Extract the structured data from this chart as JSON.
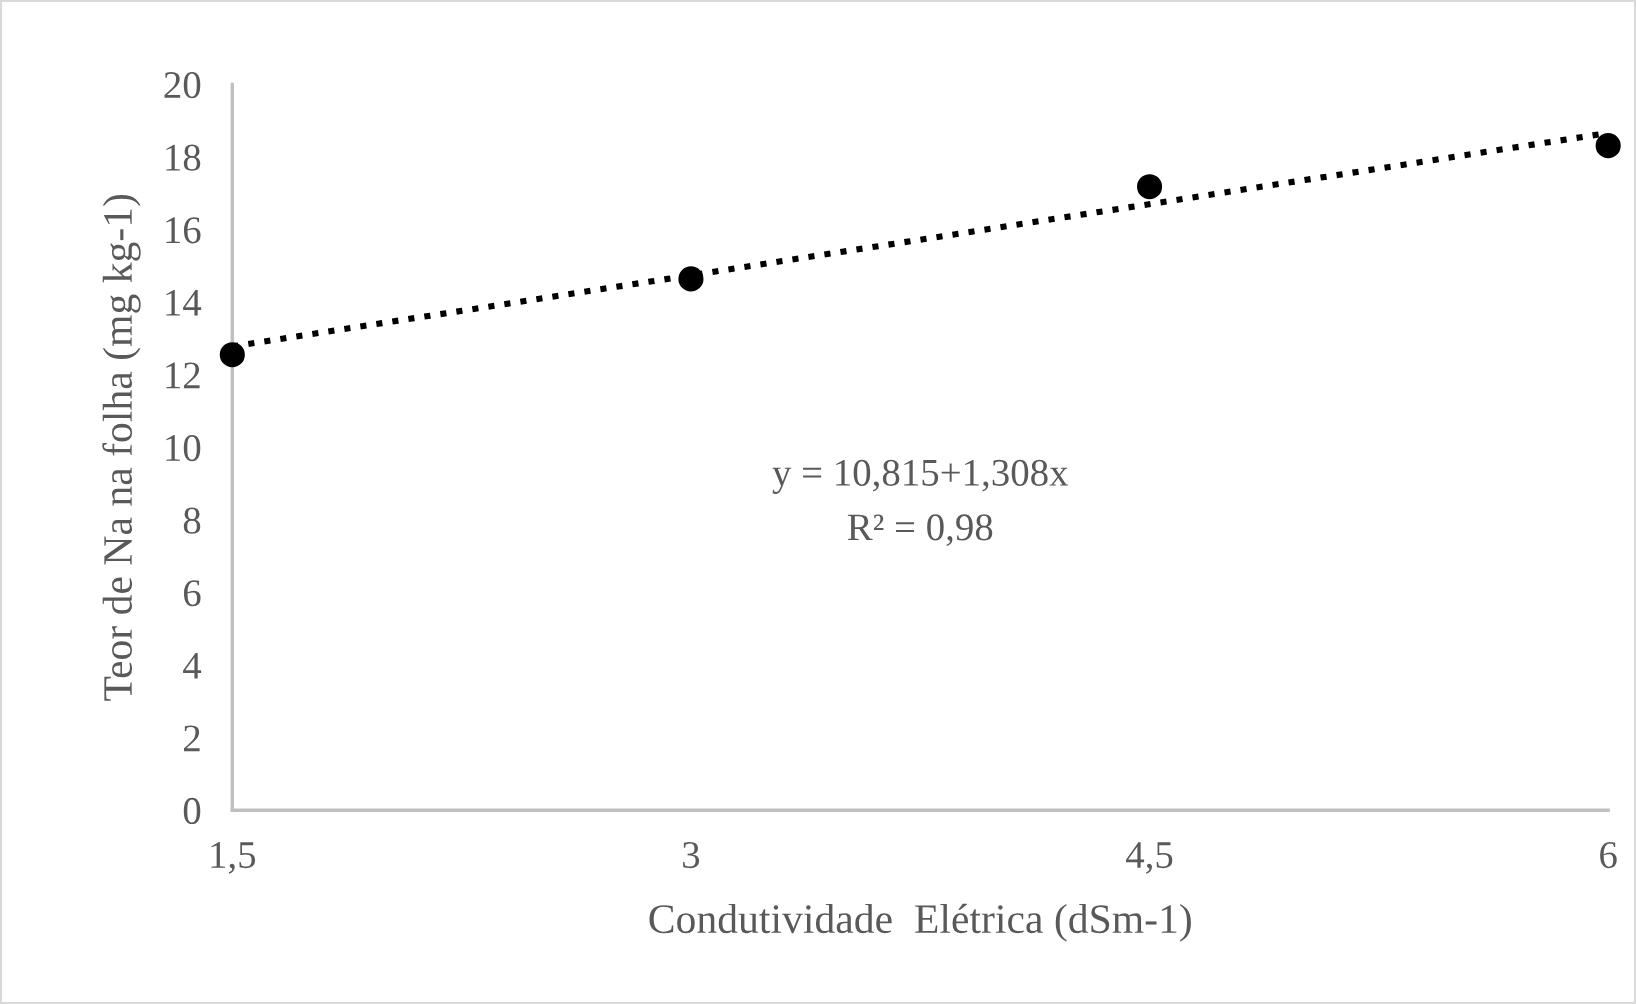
{
  "chart_data": {
    "type": "scatter",
    "xlabel": "Condutividade  Elétrica (dSm-1)",
    "ylabel": "Teor de Na na folha (mg kg-1)",
    "series": [
      {
        "color": "#000000",
        "x": [
          1.5,
          3,
          4.5,
          6
        ],
        "values": [
          12.55,
          14.64,
          17.18,
          18.31
        ],
        "marker": "circle"
      },
      {
        "type": "line",
        "color": "#000000",
        "x": [
          1.5,
          6
        ],
        "values": [
          12.78,
          18.66
        ],
        "line_style": "dotted",
        "marker": "none"
      }
    ],
    "annotations": [
      "y = 10,815+1,308x",
      "R² = 0,98"
    ],
    "xlim": [
      1.5,
      6
    ],
    "xticks": [
      {
        "value": 1.5,
        "label": "1,5"
      },
      3,
      {
        "value": 4.5,
        "label": "4,5"
      },
      6
    ],
    "ylim": [
      0,
      20
    ],
    "yticks": [
      0,
      2,
      4,
      6,
      8,
      10,
      12,
      14,
      16,
      18,
      20
    ],
    "grid": false,
    "legend": false
  }
}
